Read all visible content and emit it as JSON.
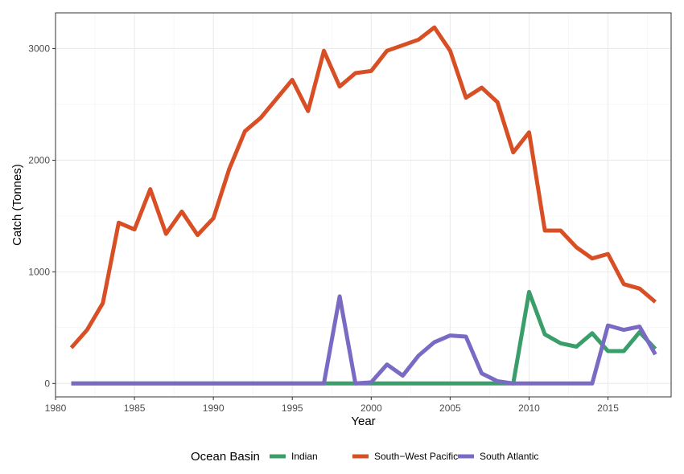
{
  "chart_data": {
    "type": "line",
    "xlabel": "Year",
    "ylabel": "Catch (Tonnes)",
    "xlim": [
      1980,
      2019
    ],
    "ylim": [
      -120,
      3320
    ],
    "x_ticks": [
      1980,
      1985,
      1990,
      1995,
      2000,
      2005,
      2010,
      2015
    ],
    "y_ticks": [
      0,
      1000,
      2000,
      3000
    ],
    "grid": true,
    "legend": {
      "title": "Ocean Basin",
      "position": "bottom"
    },
    "x": [
      1981,
      1982,
      1983,
      1984,
      1985,
      1986,
      1987,
      1988,
      1989,
      1990,
      1991,
      1992,
      1993,
      1994,
      1995,
      1996,
      1997,
      1998,
      1999,
      2000,
      2001,
      2002,
      2003,
      2004,
      2005,
      2006,
      2007,
      2008,
      2009,
      2010,
      2011,
      2012,
      2013,
      2014,
      2015,
      2016,
      2017,
      2018
    ],
    "series": [
      {
        "name": "Indian",
        "color": "#3a9e6a",
        "values": [
          0,
          0,
          0,
          0,
          0,
          0,
          0,
          0,
          0,
          0,
          0,
          0,
          0,
          0,
          0,
          0,
          0,
          0,
          0,
          0,
          0,
          0,
          0,
          0,
          0,
          0,
          0,
          0,
          0,
          820,
          440,
          360,
          330,
          450,
          290,
          290,
          460,
          310
        ]
      },
      {
        "name": "South−West Pacific",
        "color": "#d94f25",
        "values": [
          320,
          480,
          720,
          1440,
          1380,
          1740,
          1340,
          1540,
          1330,
          1480,
          1920,
          2260,
          2380,
          2550,
          2720,
          2440,
          2980,
          2660,
          2780,
          2800,
          2980,
          3030,
          3080,
          3190,
          2980,
          2560,
          2650,
          2520,
          2070,
          2250,
          1370,
          1370,
          1220,
          1120,
          1160,
          890,
          850,
          730
        ]
      },
      {
        "name": "South Atlantic",
        "color": "#7a6ac4",
        "values": [
          0,
          0,
          0,
          0,
          0,
          0,
          0,
          0,
          0,
          0,
          0,
          0,
          0,
          0,
          0,
          0,
          0,
          780,
          0,
          10,
          170,
          70,
          250,
          370,
          430,
          420,
          90,
          20,
          0,
          0,
          0,
          0,
          0,
          0,
          520,
          480,
          510,
          260
        ]
      }
    ]
  }
}
